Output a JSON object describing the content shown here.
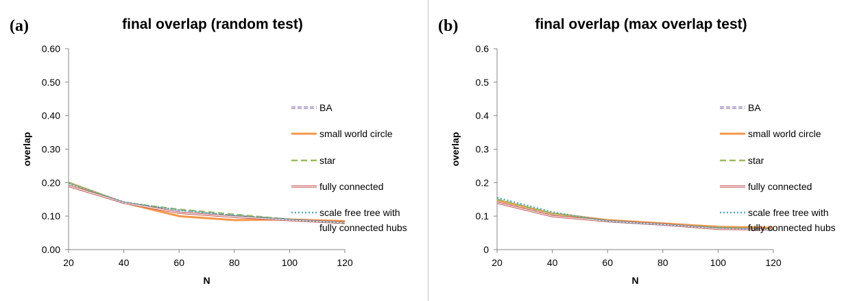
{
  "chart_data": [
    {
      "type": "line",
      "panel_label": "(a)",
      "title": "final overlap (random test)",
      "xlabel": "N",
      "ylabel": "overlap",
      "x": [
        20,
        40,
        60,
        80,
        100,
        120
      ],
      "xticks": [
        "20",
        "40",
        "60",
        "80",
        "100",
        "120"
      ],
      "ylim": [
        0,
        0.6
      ],
      "yticks": [
        "0.00",
        "0.10",
        "0.20",
        "0.30",
        "0.40",
        "0.50",
        "0.60"
      ],
      "grid": false,
      "legend_position": "right",
      "series": [
        {
          "name": "BA",
          "values": [
            0.195,
            0.14,
            0.115,
            0.1,
            0.09,
            0.08
          ],
          "color": "#7f62a8",
          "style": "double-dash"
        },
        {
          "name": "small world circle",
          "values": [
            0.2,
            0.14,
            0.1,
            0.088,
            0.09,
            0.085
          ],
          "color": "#f79646",
          "style": "solid-thick"
        },
        {
          "name": "star",
          "values": [
            0.2,
            0.14,
            0.12,
            0.105,
            0.09,
            0.078
          ],
          "color": "#9bbb59",
          "style": "dash"
        },
        {
          "name": "fully connected",
          "values": [
            0.19,
            0.14,
            0.11,
            0.098,
            0.088,
            0.08
          ],
          "color": "#c0504d",
          "style": "double"
        },
        {
          "name": "scale free tree with fully connected hubs",
          "legend_lines": [
            "scale free tree with",
            "fully connected hubs"
          ],
          "values": [
            0.198,
            0.142,
            0.118,
            0.102,
            0.09,
            0.08
          ],
          "color": "#4bacc6",
          "style": "dot"
        }
      ]
    },
    {
      "type": "line",
      "panel_label": "(b)",
      "title": "final overlap (max overlap test)",
      "xlabel": "N",
      "ylabel": "overlap",
      "x": [
        20,
        40,
        60,
        80,
        100,
        120
      ],
      "xticks": [
        "20",
        "40",
        "60",
        "80",
        "100",
        "120"
      ],
      "ylim": [
        0,
        0.6
      ],
      "yticks": [
        "0",
        "0.1",
        "0.2",
        "0.3",
        "0.4",
        "0.5",
        "0.6"
      ],
      "grid": false,
      "legend_position": "right",
      "series": [
        {
          "name": "BA",
          "values": [
            0.145,
            0.105,
            0.085,
            0.075,
            0.065,
            0.062
          ],
          "color": "#7f62a8",
          "style": "double-dash"
        },
        {
          "name": "small world circle",
          "values": [
            0.148,
            0.108,
            0.088,
            0.078,
            0.068,
            0.065
          ],
          "color": "#f79646",
          "style": "solid-thick"
        },
        {
          "name": "star",
          "values": [
            0.15,
            0.108,
            0.087,
            0.075,
            0.066,
            0.062
          ],
          "color": "#9bbb59",
          "style": "dash"
        },
        {
          "name": "fully connected",
          "values": [
            0.14,
            0.1,
            0.085,
            0.075,
            0.062,
            0.06
          ],
          "color": "#c0504d",
          "style": "double"
        },
        {
          "name": "scale free tree with fully connected hubs",
          "legend_lines": [
            "scale free tree with",
            "fully connected hubs"
          ],
          "values": [
            0.155,
            0.112,
            0.085,
            0.075,
            0.065,
            0.06
          ],
          "color": "#4bacc6",
          "style": "dot"
        }
      ]
    }
  ]
}
